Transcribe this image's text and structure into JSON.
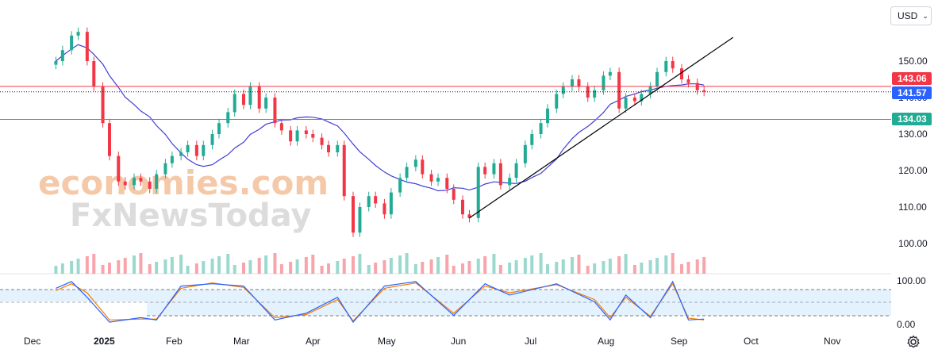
{
  "currency": {
    "label": "USD"
  },
  "price_axis": {
    "labels": [
      "150.00",
      "140.00",
      "130.00",
      "120.00",
      "110.00",
      "100.00"
    ]
  },
  "osc_axis": {
    "labels": [
      "100.00",
      "0.00"
    ]
  },
  "x_axis": {
    "labels": [
      "Dec",
      "2025",
      "Feb",
      "Mar",
      "Apr",
      "May",
      "Jun",
      "Jul",
      "Aug",
      "Sep",
      "Oct",
      "Nov"
    ]
  },
  "price_tags": {
    "resistance": {
      "label": "143.06",
      "color": "#f23645"
    },
    "last": {
      "label": "141.57",
      "color": "#2962ff"
    },
    "support": {
      "label": "134.03",
      "color": "#22ab94"
    }
  },
  "watermark": {
    "line1": "economies.com",
    "line2": "FxNewsToday"
  },
  "colors": {
    "up": "#22ab94",
    "down": "#f23645",
    "ma": "#3f3fd6",
    "stoch_k": "#2962ff",
    "stoch_d": "#f57c00"
  },
  "chart_data": {
    "type": "candlestick",
    "x_range": [
      "2024-11-25",
      "2025-11-30"
    ],
    "ylim": [
      96,
      158
    ],
    "grid": false,
    "candles": [
      {
        "date": "2024-11-26",
        "close": 150
      },
      {
        "date": "2024-11-29",
        "close": 153
      },
      {
        "date": "2024-12-03",
        "close": 157
      },
      {
        "date": "2024-12-06",
        "close": 158
      },
      {
        "date": "2024-12-10",
        "close": 150
      },
      {
        "date": "2024-12-13",
        "close": 143
      },
      {
        "date": "2024-12-17",
        "close": 133
      },
      {
        "date": "2024-12-20",
        "close": 124
      },
      {
        "date": "2024-12-24",
        "close": 117
      },
      {
        "date": "2024-12-27",
        "close": 116
      },
      {
        "date": "2024-12-31",
        "close": 118
      },
      {
        "date": "2025-01-03",
        "close": 117
      },
      {
        "date": "2025-01-07",
        "close": 115
      },
      {
        "date": "2025-01-10",
        "close": 119
      },
      {
        "date": "2025-01-14",
        "close": 122
      },
      {
        "date": "2025-01-17",
        "close": 124
      },
      {
        "date": "2025-01-21",
        "close": 125
      },
      {
        "date": "2025-01-24",
        "close": 127
      },
      {
        "date": "2025-01-28",
        "close": 124
      },
      {
        "date": "2025-01-31",
        "close": 127
      },
      {
        "date": "2025-02-04",
        "close": 130
      },
      {
        "date": "2025-02-07",
        "close": 133
      },
      {
        "date": "2025-02-11",
        "close": 136
      },
      {
        "date": "2025-02-14",
        "close": 141
      },
      {
        "date": "2025-02-18",
        "close": 138
      },
      {
        "date": "2025-02-21",
        "close": 143
      },
      {
        "date": "2025-02-25",
        "close": 137
      },
      {
        "date": "2025-02-28",
        "close": 140
      },
      {
        "date": "2025-03-04",
        "close": 133
      },
      {
        "date": "2025-03-07",
        "close": 131
      },
      {
        "date": "2025-03-11",
        "close": 128
      },
      {
        "date": "2025-03-14",
        "close": 131
      },
      {
        "date": "2025-03-18",
        "close": 130
      },
      {
        "date": "2025-03-21",
        "close": 129
      },
      {
        "date": "2025-03-25",
        "close": 127
      },
      {
        "date": "2025-03-28",
        "close": 125
      },
      {
        "date": "2025-04-01",
        "close": 127
      },
      {
        "date": "2025-04-04",
        "close": 113
      },
      {
        "date": "2025-04-08",
        "close": 103
      },
      {
        "date": "2025-04-11",
        "close": 110
      },
      {
        "date": "2025-04-15",
        "close": 113
      },
      {
        "date": "2025-04-18",
        "close": 111
      },
      {
        "date": "2025-04-22",
        "close": 108
      },
      {
        "date": "2025-04-25",
        "close": 114
      },
      {
        "date": "2025-04-29",
        "close": 118
      },
      {
        "date": "2025-05-02",
        "close": 121
      },
      {
        "date": "2025-05-06",
        "close": 123
      },
      {
        "date": "2025-05-09",
        "close": 119
      },
      {
        "date": "2025-05-13",
        "close": 117
      },
      {
        "date": "2025-05-16",
        "close": 118
      },
      {
        "date": "2025-05-20",
        "close": 115
      },
      {
        "date": "2025-05-23",
        "close": 112
      },
      {
        "date": "2025-05-27",
        "close": 108
      },
      {
        "date": "2025-05-30",
        "close": 107
      },
      {
        "date": "2025-06-03",
        "close": 121
      },
      {
        "date": "2025-06-06",
        "close": 119
      },
      {
        "date": "2025-06-10",
        "close": 122
      },
      {
        "date": "2025-06-13",
        "close": 116
      },
      {
        "date": "2025-06-17",
        "close": 118
      },
      {
        "date": "2025-06-20",
        "close": 122
      },
      {
        "date": "2025-06-24",
        "close": 127
      },
      {
        "date": "2025-06-27",
        "close": 130
      },
      {
        "date": "2025-07-01",
        "close": 133
      },
      {
        "date": "2025-07-04",
        "close": 137
      },
      {
        "date": "2025-07-08",
        "close": 141
      },
      {
        "date": "2025-07-11",
        "close": 143
      },
      {
        "date": "2025-07-15",
        "close": 145
      },
      {
        "date": "2025-07-18",
        "close": 143
      },
      {
        "date": "2025-07-22",
        "close": 140
      },
      {
        "date": "2025-07-25",
        "close": 142
      },
      {
        "date": "2025-07-29",
        "close": 146
      },
      {
        "date": "2025-08-01",
        "close": 147
      },
      {
        "date": "2025-08-05",
        "close": 137
      },
      {
        "date": "2025-08-08",
        "close": 140
      },
      {
        "date": "2025-08-12",
        "close": 139
      },
      {
        "date": "2025-08-15",
        "close": 141
      },
      {
        "date": "2025-08-19",
        "close": 143
      },
      {
        "date": "2025-08-22",
        "close": 147
      },
      {
        "date": "2025-08-26",
        "close": 150
      },
      {
        "date": "2025-08-29",
        "close": 148
      },
      {
        "date": "2025-09-02",
        "close": 145
      },
      {
        "date": "2025-09-05",
        "close": 144
      },
      {
        "date": "2025-09-09",
        "close": 142
      },
      {
        "date": "2025-09-12",
        "close": 141.57
      }
    ],
    "horizontal_lines": [
      143.06,
      134.03
    ],
    "trendline": [
      {
        "date": "2025-05-30",
        "value": 107
      },
      {
        "date": "2025-09-25",
        "value": 156.5
      }
    ],
    "stochastic": {
      "ylim": [
        0,
        100
      ],
      "levels": [
        80,
        50,
        20
      ],
      "k": [
        {
          "date": "2024-11-26",
          "value": 80
        },
        {
          "date": "2024-12-03",
          "value": 95
        },
        {
          "date": "2024-12-10",
          "value": 60
        },
        {
          "date": "2024-12-20",
          "value": 5
        },
        {
          "date": "2025-01-03",
          "value": 15
        },
        {
          "date": "2025-01-10",
          "value": 10
        },
        {
          "date": "2025-01-21",
          "value": 85
        },
        {
          "date": "2025-02-04",
          "value": 90
        },
        {
          "date": "2025-02-18",
          "value": 85
        },
        {
          "date": "2025-03-04",
          "value": 10
        },
        {
          "date": "2025-03-18",
          "value": 25
        },
        {
          "date": "2025-04-01",
          "value": 60
        },
        {
          "date": "2025-04-08",
          "value": 5
        },
        {
          "date": "2025-04-22",
          "value": 85
        },
        {
          "date": "2025-05-06",
          "value": 95
        },
        {
          "date": "2025-05-23",
          "value": 20
        },
        {
          "date": "2025-06-06",
          "value": 90
        },
        {
          "date": "2025-06-17",
          "value": 65
        },
        {
          "date": "2025-07-08",
          "value": 90
        },
        {
          "date": "2025-07-25",
          "value": 50
        },
        {
          "date": "2025-08-01",
          "value": 10
        },
        {
          "date": "2025-08-08",
          "value": 65
        },
        {
          "date": "2025-08-19",
          "value": 15
        },
        {
          "date": "2025-08-29",
          "value": 95
        },
        {
          "date": "2025-09-05",
          "value": 10
        },
        {
          "date": "2025-09-12",
          "value": 12
        }
      ],
      "d": [
        {
          "date": "2024-11-26",
          "value": 75
        },
        {
          "date": "2024-12-03",
          "value": 90
        },
        {
          "date": "2024-12-10",
          "value": 70
        },
        {
          "date": "2024-12-20",
          "value": 10
        },
        {
          "date": "2025-01-03",
          "value": 12
        },
        {
          "date": "2025-01-10",
          "value": 12
        },
        {
          "date": "2025-01-21",
          "value": 80
        },
        {
          "date": "2025-02-04",
          "value": 92
        },
        {
          "date": "2025-02-18",
          "value": 82
        },
        {
          "date": "2025-03-04",
          "value": 15
        },
        {
          "date": "2025-03-18",
          "value": 22
        },
        {
          "date": "2025-04-01",
          "value": 55
        },
        {
          "date": "2025-04-08",
          "value": 8
        },
        {
          "date": "2025-04-22",
          "value": 80
        },
        {
          "date": "2025-05-06",
          "value": 92
        },
        {
          "date": "2025-05-23",
          "value": 25
        },
        {
          "date": "2025-06-06",
          "value": 85
        },
        {
          "date": "2025-06-17",
          "value": 70
        },
        {
          "date": "2025-07-08",
          "value": 88
        },
        {
          "date": "2025-07-25",
          "value": 55
        },
        {
          "date": "2025-08-01",
          "value": 15
        },
        {
          "date": "2025-08-08",
          "value": 60
        },
        {
          "date": "2025-08-19",
          "value": 18
        },
        {
          "date": "2025-08-29",
          "value": 90
        },
        {
          "date": "2025-09-05",
          "value": 14
        },
        {
          "date": "2025-09-12",
          "value": 10
        }
      ]
    }
  }
}
